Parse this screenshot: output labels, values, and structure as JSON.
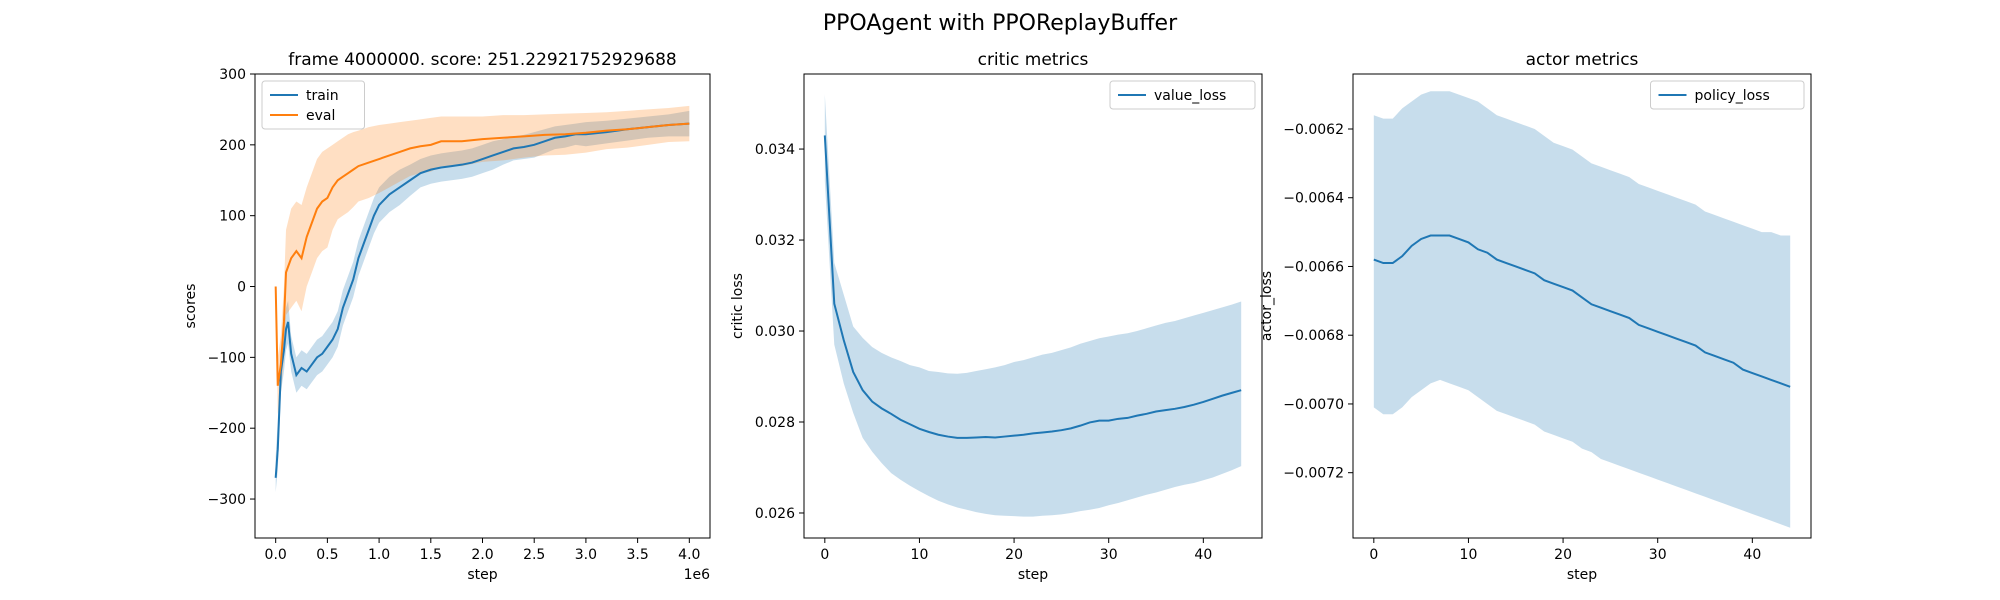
{
  "figure": {
    "suptitle": "PPOAgent with PPOReplayBuffer"
  },
  "chart_data": [
    {
      "type": "line",
      "title": "frame 4000000. score: 251.22921752929688",
      "xlabel": "step",
      "ylabel": "scores",
      "x_offset_label": "1e6",
      "xlim": [
        -0.2,
        4.2
      ],
      "ylim": [
        -355,
        300
      ],
      "x_ticks": [
        0.0,
        0.5,
        1.0,
        1.5,
        2.0,
        2.5,
        3.0,
        3.5,
        4.0
      ],
      "x_tick_labels": [
        "0.0",
        "0.5",
        "1.0",
        "1.5",
        "2.0",
        "2.5",
        "3.0",
        "3.5",
        "4.0"
      ],
      "y_ticks": [
        -300,
        -200,
        -100,
        0,
        100,
        200,
        300
      ],
      "y_tick_labels": [
        "−300",
        "−200",
        "−100",
        "0",
        "100",
        "200",
        "300"
      ],
      "legend": "top-left",
      "series": [
        {
          "name": "train",
          "color": "#1f77b4",
          "x": [
            0.0,
            0.02,
            0.05,
            0.08,
            0.1,
            0.12,
            0.15,
            0.2,
            0.25,
            0.3,
            0.35,
            0.4,
            0.45,
            0.5,
            0.55,
            0.6,
            0.65,
            0.7,
            0.75,
            0.8,
            0.85,
            0.9,
            0.95,
            1.0,
            1.1,
            1.2,
            1.3,
            1.4,
            1.5,
            1.6,
            1.7,
            1.8,
            1.9,
            2.0,
            2.1,
            2.2,
            2.3,
            2.4,
            2.5,
            2.6,
            2.7,
            2.8,
            2.9,
            3.0,
            3.2,
            3.4,
            3.6,
            3.8,
            4.0
          ],
          "y": [
            -270,
            -230,
            -120,
            -90,
            -60,
            -50,
            -95,
            -125,
            -115,
            -120,
            -110,
            -100,
            -95,
            -85,
            -75,
            -60,
            -30,
            -10,
            10,
            40,
            60,
            80,
            100,
            115,
            130,
            140,
            150,
            160,
            165,
            168,
            170,
            172,
            175,
            180,
            185,
            190,
            195,
            197,
            200,
            205,
            210,
            212,
            215,
            215,
            218,
            222,
            225,
            228,
            230
          ],
          "band_upper": [
            -240,
            -190,
            -90,
            -60,
            -30,
            -20,
            -70,
            -100,
            -90,
            -95,
            -85,
            -75,
            -70,
            -60,
            -50,
            -35,
            -5,
            15,
            35,
            65,
            85,
            105,
            125,
            140,
            155,
            165,
            172,
            180,
            185,
            188,
            190,
            192,
            195,
            200,
            205,
            208,
            212,
            214,
            218,
            222,
            226,
            228,
            230,
            232,
            234,
            237,
            240,
            243,
            248
          ],
          "band_lower": [
            -290,
            -260,
            -150,
            -120,
            -90,
            -80,
            -120,
            -150,
            -140,
            -145,
            -135,
            -125,
            -120,
            -110,
            -100,
            -85,
            -55,
            -35,
            -15,
            15,
            35,
            55,
            75,
            90,
            105,
            115,
            128,
            140,
            145,
            148,
            150,
            152,
            155,
            160,
            165,
            172,
            178,
            180,
            182,
            188,
            194,
            196,
            200,
            198,
            202,
            206,
            210,
            212,
            212
          ]
        },
        {
          "name": "eval",
          "color": "#ff7f0e",
          "x": [
            0.0,
            0.02,
            0.05,
            0.08,
            0.1,
            0.15,
            0.2,
            0.25,
            0.3,
            0.35,
            0.4,
            0.45,
            0.5,
            0.55,
            0.6,
            0.65,
            0.7,
            0.75,
            0.8,
            0.9,
            1.0,
            1.1,
            1.2,
            1.3,
            1.4,
            1.5,
            1.6,
            1.8,
            2.0,
            2.2,
            2.4,
            2.6,
            2.8,
            3.0,
            3.2,
            3.4,
            3.6,
            3.8,
            4.0
          ],
          "y": [
            0,
            -140,
            -110,
            -50,
            20,
            40,
            50,
            40,
            70,
            90,
            110,
            120,
            125,
            140,
            150,
            155,
            160,
            165,
            170,
            175,
            180,
            185,
            190,
            195,
            198,
            200,
            205,
            205,
            208,
            210,
            212,
            214,
            215,
            217,
            220,
            222,
            225,
            228,
            230
          ],
          "band_upper": [
            0,
            -100,
            -70,
            0,
            80,
            110,
            120,
            115,
            140,
            160,
            180,
            190,
            195,
            200,
            205,
            210,
            215,
            218,
            220,
            225,
            228,
            230,
            232,
            234,
            236,
            238,
            240,
            240,
            240,
            242,
            242,
            243,
            244,
            245,
            246,
            248,
            250,
            252,
            255
          ],
          "band_lower": [
            0,
            -180,
            -150,
            -100,
            -40,
            -30,
            -20,
            -35,
            0,
            20,
            40,
            50,
            55,
            80,
            95,
            100,
            105,
            112,
            120,
            125,
            132,
            140,
            148,
            156,
            160,
            162,
            170,
            170,
            176,
            178,
            182,
            185,
            186,
            189,
            194,
            196,
            200,
            204,
            205
          ]
        }
      ]
    },
    {
      "type": "line",
      "title": "critic metrics",
      "xlabel": "step",
      "ylabel": "critic loss",
      "xlim": [
        -2.2,
        46.2
      ],
      "ylim": [
        0.02545,
        0.03565
      ],
      "x_ticks": [
        0,
        10,
        20,
        30,
        40
      ],
      "x_tick_labels": [
        "0",
        "10",
        "20",
        "30",
        "40"
      ],
      "y_ticks": [
        0.026,
        0.028,
        0.03,
        0.032,
        0.034
      ],
      "y_tick_labels": [
        "0.026",
        "0.028",
        "0.030",
        "0.032",
        "0.034"
      ],
      "legend": "top-right",
      "series": [
        {
          "name": "value_loss",
          "color": "#1f77b4",
          "x": [
            0,
            1,
            2,
            3,
            4,
            5,
            6,
            7,
            8,
            9,
            10,
            11,
            12,
            13,
            14,
            15,
            16,
            17,
            18,
            19,
            20,
            21,
            22,
            23,
            24,
            25,
            26,
            27,
            28,
            29,
            30,
            31,
            32,
            33,
            34,
            35,
            36,
            37,
            38,
            39,
            40,
            41,
            42,
            43,
            44
          ],
          "y": [
            0.0343,
            0.0306,
            0.0298,
            0.0291,
            0.0287,
            0.02845,
            0.0283,
            0.02818,
            0.02805,
            0.02795,
            0.02785,
            0.02778,
            0.02772,
            0.02768,
            0.02765,
            0.02765,
            0.02766,
            0.02767,
            0.02766,
            0.02768,
            0.0277,
            0.02772,
            0.02775,
            0.02777,
            0.02779,
            0.02782,
            0.02786,
            0.02792,
            0.02799,
            0.02803,
            0.02803,
            0.02807,
            0.02809,
            0.02814,
            0.02818,
            0.02823,
            0.02826,
            0.02829,
            0.02833,
            0.02838,
            0.02844,
            0.02851,
            0.02858,
            0.02864,
            0.0287
          ],
          "band_upper": [
            0.0352,
            0.0315,
            0.0308,
            0.0301,
            0.02985,
            0.02965,
            0.02952,
            0.02942,
            0.02934,
            0.02925,
            0.0292,
            0.02912,
            0.0291,
            0.02907,
            0.02906,
            0.02908,
            0.02912,
            0.02916,
            0.0292,
            0.02925,
            0.02932,
            0.02936,
            0.02942,
            0.02948,
            0.02952,
            0.02958,
            0.02964,
            0.02972,
            0.02978,
            0.02984,
            0.02988,
            0.02992,
            0.02995,
            0.03,
            0.03006,
            0.03012,
            0.03018,
            0.03022,
            0.03028,
            0.03034,
            0.0304,
            0.03046,
            0.03052,
            0.03058,
            0.03065
          ],
          "band_lower": [
            0.0333,
            0.0297,
            0.02885,
            0.0282,
            0.02765,
            0.02735,
            0.0271,
            0.02688,
            0.02673,
            0.0266,
            0.02648,
            0.02637,
            0.02627,
            0.02619,
            0.02612,
            0.02607,
            0.02602,
            0.02598,
            0.02595,
            0.02594,
            0.02593,
            0.02592,
            0.02592,
            0.02594,
            0.02595,
            0.02597,
            0.026,
            0.02604,
            0.02607,
            0.02611,
            0.02617,
            0.02622,
            0.02628,
            0.02634,
            0.0264,
            0.02645,
            0.02651,
            0.02657,
            0.02662,
            0.02666,
            0.02672,
            0.02678,
            0.02686,
            0.02694,
            0.02703
          ]
        }
      ]
    },
    {
      "type": "line",
      "title": "actor metrics",
      "xlabel": "step",
      "ylabel": "actor_loss",
      "xlim": [
        -2.2,
        46.2
      ],
      "ylim": [
        -0.00739,
        -0.00604
      ],
      "x_ticks": [
        0,
        10,
        20,
        30,
        40
      ],
      "x_tick_labels": [
        "0",
        "10",
        "20",
        "30",
        "40"
      ],
      "y_ticks": [
        -0.0072,
        -0.007,
        -0.0068,
        -0.0066,
        -0.0064,
        -0.0062
      ],
      "y_tick_labels": [
        "−0.0072",
        "−0.0070",
        "−0.0068",
        "−0.0066",
        "−0.0064",
        "−0.0062"
      ],
      "legend": "top-right",
      "series": [
        {
          "name": "policy_loss",
          "color": "#1f77b4",
          "x": [
            0,
            1,
            2,
            3,
            4,
            5,
            6,
            7,
            8,
            9,
            10,
            11,
            12,
            13,
            14,
            15,
            16,
            17,
            18,
            19,
            20,
            21,
            22,
            23,
            24,
            25,
            26,
            27,
            28,
            29,
            30,
            31,
            32,
            33,
            34,
            35,
            36,
            37,
            38,
            39,
            40,
            41,
            42,
            43,
            44
          ],
          "y": [
            -0.00658,
            -0.00659,
            -0.00659,
            -0.00657,
            -0.00654,
            -0.00652,
            -0.00651,
            -0.00651,
            -0.00651,
            -0.00652,
            -0.00653,
            -0.00655,
            -0.00656,
            -0.00658,
            -0.00659,
            -0.0066,
            -0.00661,
            -0.00662,
            -0.00664,
            -0.00665,
            -0.00666,
            -0.00667,
            -0.00669,
            -0.00671,
            -0.00672,
            -0.00673,
            -0.00674,
            -0.00675,
            -0.00677,
            -0.00678,
            -0.00679,
            -0.0068,
            -0.00681,
            -0.00682,
            -0.00683,
            -0.00685,
            -0.00686,
            -0.00687,
            -0.00688,
            -0.0069,
            -0.00691,
            -0.00692,
            -0.00693,
            -0.00694,
            -0.00695
          ],
          "band_upper": [
            -0.00616,
            -0.00617,
            -0.00617,
            -0.00614,
            -0.00612,
            -0.0061,
            -0.00609,
            -0.00609,
            -0.00609,
            -0.0061,
            -0.00611,
            -0.00612,
            -0.00614,
            -0.00616,
            -0.00617,
            -0.00618,
            -0.00619,
            -0.0062,
            -0.00622,
            -0.00624,
            -0.00625,
            -0.00626,
            -0.00628,
            -0.0063,
            -0.00631,
            -0.00632,
            -0.00633,
            -0.00634,
            -0.00636,
            -0.00637,
            -0.00638,
            -0.00639,
            -0.0064,
            -0.00641,
            -0.00642,
            -0.00644,
            -0.00645,
            -0.00646,
            -0.00647,
            -0.00648,
            -0.00649,
            -0.0065,
            -0.0065,
            -0.00651,
            -0.00651
          ],
          "band_lower": [
            -0.00701,
            -0.00703,
            -0.00703,
            -0.00701,
            -0.00698,
            -0.00696,
            -0.00694,
            -0.00693,
            -0.00694,
            -0.00695,
            -0.00696,
            -0.00698,
            -0.007,
            -0.00702,
            -0.00703,
            -0.00704,
            -0.00705,
            -0.00706,
            -0.00708,
            -0.00709,
            -0.0071,
            -0.00711,
            -0.00713,
            -0.00714,
            -0.00716,
            -0.00717,
            -0.00718,
            -0.00719,
            -0.0072,
            -0.00721,
            -0.00722,
            -0.00723,
            -0.00724,
            -0.00725,
            -0.00726,
            -0.00727,
            -0.00728,
            -0.00729,
            -0.0073,
            -0.00731,
            -0.00732,
            -0.00733,
            -0.00734,
            -0.00735,
            -0.00736
          ]
        }
      ]
    }
  ]
}
